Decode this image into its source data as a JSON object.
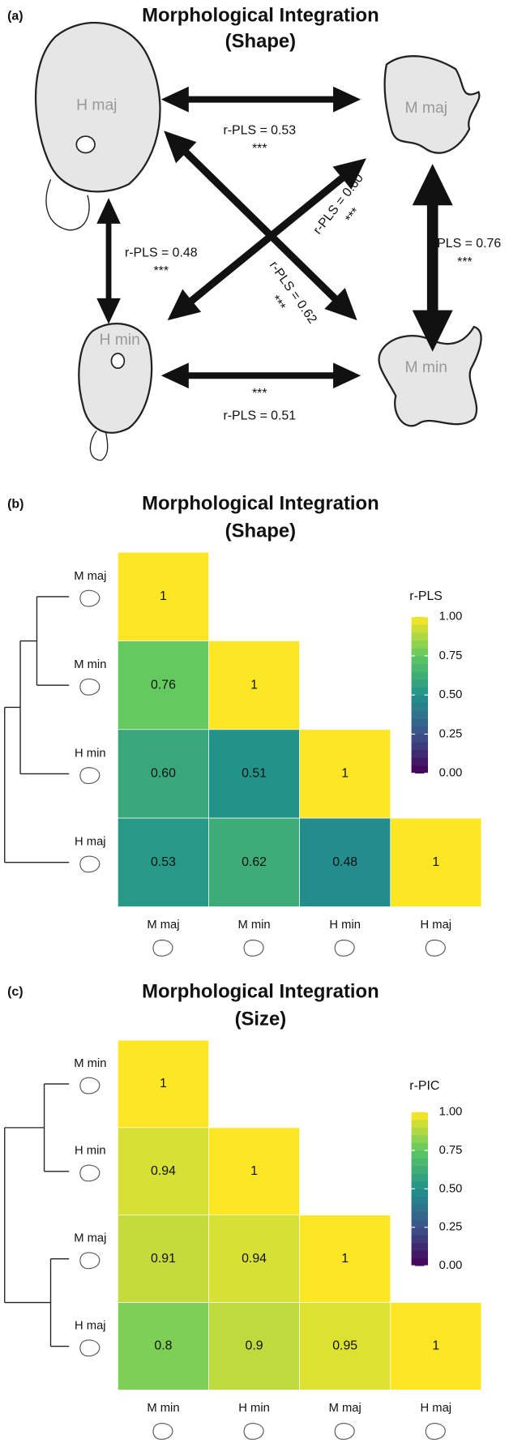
{
  "panel_a": {
    "label": "(a)",
    "title": "Morphological Integration",
    "subtitle": "(Shape)",
    "nodes": [
      {
        "label": "H maj"
      },
      {
        "label": "M maj"
      },
      {
        "label": "H min"
      },
      {
        "label": "M min"
      }
    ],
    "edges": [
      {
        "label": "r-PLS = 0.53",
        "stars": "***"
      },
      {
        "label": "r-PLS = 0.48",
        "stars": "***"
      },
      {
        "label": "r-PLS = 0.60",
        "stars": "***"
      },
      {
        "label": "r-PLS = 0.62",
        "stars": "***"
      },
      {
        "label": "r-PLS = 0.76",
        "stars": "***"
      },
      {
        "label": "r-PLS = 0.51",
        "stars": "***"
      }
    ]
  },
  "chart_data": [
    {
      "type": "heatmap",
      "panel_label": "(b)",
      "title": "Morphological Integration",
      "subtitle": "(Shape)",
      "rows": [
        "M maj",
        "M min",
        "H min",
        "H maj"
      ],
      "columns": [
        "M maj",
        "M min",
        "H min",
        "H maj"
      ],
      "values": [
        [
          1,
          null,
          null,
          null
        ],
        [
          0.76,
          1,
          null,
          null
        ],
        [
          0.6,
          0.51,
          1,
          null
        ],
        [
          0.53,
          0.62,
          0.48,
          1
        ]
      ],
      "value_labels": [
        [
          "1",
          null,
          null,
          null
        ],
        [
          "0.76",
          "1",
          null,
          null
        ],
        [
          "0.60",
          "0.51",
          "1",
          null
        ],
        [
          "0.53",
          "0.62",
          "0.48",
          "1"
        ]
      ],
      "colormap": "viridis",
      "legend_title": "r-PLS",
      "clim": [
        0,
        1
      ],
      "cticks": [
        {
          "value": 1,
          "label": "1.00"
        },
        {
          "value": 0.75,
          "label": "0.75"
        },
        {
          "value": 0.5,
          "label": "0.50"
        },
        {
          "value": 0.25,
          "label": "0.25"
        },
        {
          "value": 0,
          "label": "0.00"
        }
      ]
    },
    {
      "type": "heatmap",
      "panel_label": "(c)",
      "title": "Morphological Integration",
      "subtitle": "(Size)",
      "rows": [
        "M min",
        "H min",
        "M maj",
        "H maj"
      ],
      "columns": [
        "M min",
        "H min",
        "M maj",
        "H maj"
      ],
      "values": [
        [
          1,
          null,
          null,
          null
        ],
        [
          0.94,
          1,
          null,
          null
        ],
        [
          0.91,
          0.94,
          1,
          null
        ],
        [
          0.8,
          0.9,
          0.95,
          1
        ]
      ],
      "colormap": "viridis",
      "legend_title": "r-PIC",
      "clim": [
        0,
        1
      ],
      "cticks": [
        {
          "value": 1,
          "label": "1.00"
        },
        {
          "value": 0.75,
          "label": "0.75"
        },
        {
          "value": 0.5,
          "label": "0.50"
        },
        {
          "value": 0.25,
          "label": "0.25"
        },
        {
          "value": 0,
          "label": "0.00"
        }
      ]
    }
  ]
}
